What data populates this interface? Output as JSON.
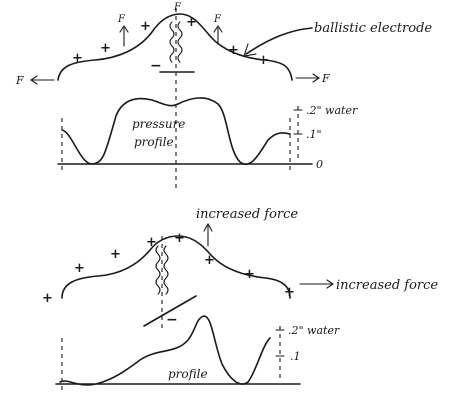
{
  "top_panel": {
    "callout": "ballistic electrode",
    "profile_label_line1": "pressure",
    "profile_label_line2": "profile",
    "scale_top": ".2\" water",
    "scale_mid": ".1\"",
    "scale_zero": "0",
    "electrode_sign": "−",
    "side_force_left": "F",
    "side_force_right": "F"
  },
  "bottom_panel": {
    "force_up_label": "increased force",
    "force_right_label": "increased force",
    "profile_label": "profile",
    "scale_top": ".2\" water",
    "scale_mid": ".1",
    "electrode_sign": "−"
  },
  "colors": {
    "ink": "#1a1a1a",
    "paper": "#ffffff"
  }
}
